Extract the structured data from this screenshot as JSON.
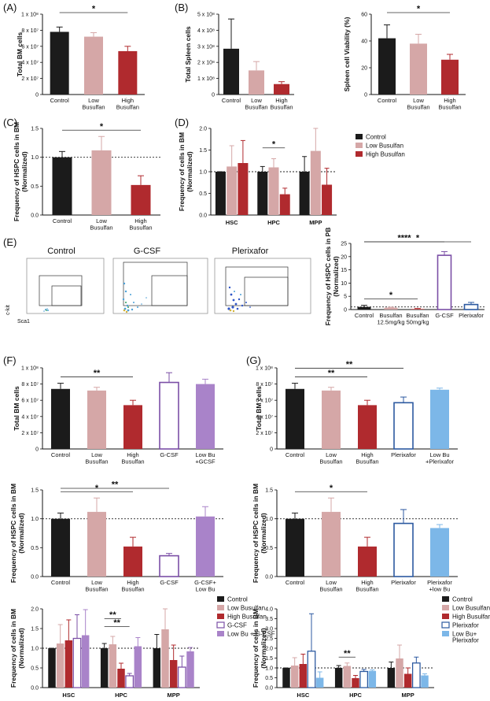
{
  "colors": {
    "control": "#1b1b1b",
    "low": "#d5a7a7",
    "high": "#b02a2e",
    "gcsf": "#7b4fa6",
    "lowbu_gcsf": "#a983c9",
    "plerixafor": "#2c59a0",
    "lowbu_plerixafor": "#7cb7e8"
  },
  "panels": [
    {
      "id": "A",
      "label": "(A)"
    },
    {
      "id": "B",
      "label": "(B)"
    },
    {
      "id": "C",
      "label": "(C)"
    },
    {
      "id": "D",
      "label": "(D)"
    },
    {
      "id": "E",
      "label": "(E)"
    },
    {
      "id": "F",
      "label": "(F)"
    },
    {
      "id": "G",
      "label": "(G)"
    }
  ],
  "flow": {
    "titles": [
      "Control",
      "G-CSF",
      "Plerixafor"
    ],
    "y_axis": "c-kit",
    "x_axis": "Sca1"
  },
  "chart_data": [
    {
      "id": "A",
      "type": "bar",
      "ylabel": "Total BM cells",
      "ylim": [
        0,
        100000000
      ],
      "yticks": [
        "0",
        "2 x 10⁷",
        "4 x 10⁷",
        "6 x 10⁷",
        "8 x 10⁷",
        "1 x 10⁸"
      ],
      "categories": [
        "Control",
        "Low\nBusulfan",
        "High\nBusulfan"
      ],
      "values": [
        78000000,
        72000000,
        54000000
      ],
      "errors": [
        6000000,
        5000000,
        6000000
      ],
      "fills": [
        "control",
        "low",
        "high"
      ],
      "significance": [
        {
          "from": 0,
          "to": 2,
          "label": "*"
        }
      ]
    },
    {
      "id": "B1",
      "type": "bar",
      "ylabel": "Total Spleen cells",
      "ylim": [
        0,
        500000000
      ],
      "yticks": [
        "0",
        "1 x 10⁸",
        "2 x 10⁸",
        "3 x 10⁸",
        "4 x 10⁸",
        "5 x 10⁸"
      ],
      "categories": [
        "Control",
        "Low\nBusulfan",
        "High\nBusulfan"
      ],
      "values": [
        285000000,
        150000000,
        65000000
      ],
      "errors": [
        185000000,
        55000000,
        15000000
      ],
      "fills": [
        "control",
        "low",
        "high"
      ],
      "significance": []
    },
    {
      "id": "B2",
      "type": "bar",
      "ylabel": "Spleen cell Viability (%)",
      "ylim": [
        0,
        60
      ],
      "yticks": [
        "0",
        "20",
        "40",
        "60"
      ],
      "categories": [
        "Control",
        "Low\nBusulfan",
        "High\nBusulfan"
      ],
      "values": [
        42,
        38,
        26
      ],
      "errors": [
        10,
        7,
        4
      ],
      "fills": [
        "control",
        "low",
        "high"
      ],
      "significance": [
        {
          "from": 0,
          "to": 2,
          "label": "*"
        }
      ]
    },
    {
      "id": "C",
      "type": "bar",
      "ylabel": "Frequency of HSPC cells in BM\n(Normalized)",
      "ylim": [
        0,
        1.5
      ],
      "yticks": [
        "0.0",
        "0.5",
        "1.0",
        "1.5"
      ],
      "categories": [
        "Control",
        "Low\nBusulfan",
        "High\nBusulfan"
      ],
      "values": [
        1.0,
        1.12,
        0.52
      ],
      "errors": [
        0.1,
        0.24,
        0.16
      ],
      "fills": [
        "control",
        "low",
        "high"
      ],
      "refline": 1.0,
      "significance": [
        {
          "from": 0,
          "to": 2,
          "label": "*"
        }
      ]
    },
    {
      "id": "D",
      "type": "grouped-bar",
      "ylabel": "Frequency of cells in BM\n(Normalized)",
      "ylim": [
        0,
        2.0
      ],
      "yticks": [
        "0.0",
        "0.5",
        "1.0",
        "1.5",
        "2.0"
      ],
      "categories": [
        "HSC",
        "HPC",
        "MPP"
      ],
      "refline": 1.0,
      "series": [
        {
          "name": "Control",
          "fill": "control",
          "values": [
            1.0,
            1.0,
            1.0
          ],
          "errors": [
            0.0,
            0.12,
            0.35
          ]
        },
        {
          "name": "Low Busulfan",
          "fill": "low",
          "values": [
            1.12,
            1.1,
            1.48
          ],
          "errors": [
            0.48,
            0.2,
            0.68
          ]
        },
        {
          "name": "High Busulfan",
          "fill": "high",
          "values": [
            1.2,
            0.48,
            0.7
          ],
          "errors": [
            0.52,
            0.14,
            0.38
          ]
        }
      ],
      "significance": [
        {
          "group": 1,
          "from": 0,
          "to": 2,
          "label": "*"
        }
      ]
    },
    {
      "id": "E",
      "type": "bar",
      "ylabel": "Frequency of HSPC cells in PB\n(Normalized)",
      "ylim": [
        0,
        25
      ],
      "yticks": [
        "0",
        "5",
        "10",
        "15",
        "20",
        "25"
      ],
      "categories": [
        "Control",
        "Busulfan\n12.5mg/kg",
        "Busulfan\n50mg/kg",
        "G-CSF",
        "Plerixafor"
      ],
      "values": [
        1.0,
        0.7,
        0.2,
        20.5,
        1.9
      ],
      "errors": [
        0.6,
        0.2,
        0.2,
        1.4,
        0.8
      ],
      "fills": [
        "control",
        "low",
        "high",
        "gcsf-open",
        "plerixafor-open"
      ],
      "refline": 1.0,
      "significance": [
        {
          "from": 0,
          "to": 2,
          "label": "*"
        },
        {
          "from": 0,
          "to": 3,
          "label": "****"
        },
        {
          "from": 0,
          "to": 4,
          "label": "*"
        }
      ]
    },
    {
      "id": "F1",
      "type": "bar",
      "ylabel": "Total BM cells",
      "ylim": [
        0,
        100000000
      ],
      "yticks": [
        "0",
        "2 x 10⁷",
        "4 x 10⁷",
        "6 x 10⁷",
        "8 x 10⁷",
        "1 x 10⁸"
      ],
      "categories": [
        "Control",
        "Low\nBusulfan",
        "High\nBusulfan",
        "G-CSF",
        "Low Bu\n+GCSF"
      ],
      "values": [
        74000000,
        72000000,
        54000000,
        82000000,
        80000000
      ],
      "errors": [
        7000000,
        4000000,
        6000000,
        12000000,
        6000000
      ],
      "fills": [
        "control",
        "low",
        "high",
        "gcsf-open",
        "lowbu_gcsf"
      ],
      "significance": [
        {
          "from": 0,
          "to": 2,
          "label": "**"
        }
      ]
    },
    {
      "id": "F2",
      "type": "bar",
      "ylabel": "Frequency of HSPC cells in BM\n(Normalized)",
      "ylim": [
        0,
        1.5
      ],
      "yticks": [
        "0.0",
        "0.5",
        "1.0",
        "1.5"
      ],
      "categories": [
        "Control",
        "Low\nBusulfan",
        "High\nBusulfan",
        "G-CSF",
        "G-CSF+\nLow Bu"
      ],
      "values": [
        1.0,
        1.12,
        0.52,
        0.36,
        1.04
      ],
      "errors": [
        0.1,
        0.24,
        0.16,
        0.04,
        0.17
      ],
      "fills": [
        "control",
        "low",
        "high",
        "gcsf-open",
        "lowbu_gcsf"
      ],
      "refline": 1.0,
      "significance": [
        {
          "from": 0,
          "to": 2,
          "label": "*"
        },
        {
          "from": 0,
          "to": 3,
          "label": "**"
        }
      ]
    },
    {
      "id": "G1",
      "type": "bar",
      "ylabel": "Total BM cells",
      "ylim": [
        0,
        100000000
      ],
      "yticks": [
        "0",
        "2 x 10⁷",
        "4 x 10⁷",
        "6 x 10⁷",
        "8 x 10⁷",
        "1 x 10⁸"
      ],
      "categories": [
        "Control",
        "Low\nBusulfan",
        "High\nBusulfan",
        "Plerixafor",
        "Low Bu\n+Plerixafor"
      ],
      "values": [
        74000000,
        72000000,
        54000000,
        57000000,
        73000000
      ],
      "errors": [
        7000000,
        4000000,
        6000000,
        7000000,
        2000000
      ],
      "fills": [
        "control",
        "low",
        "high",
        "plerixafor-open",
        "lowbu_plerixafor"
      ],
      "significance": [
        {
          "from": 0,
          "to": 2,
          "label": "**"
        },
        {
          "from": 0,
          "to": 3,
          "label": "**"
        }
      ]
    },
    {
      "id": "G2",
      "type": "bar",
      "ylabel": "Frequency of HSPC cells in BM\n(Normalized)",
      "ylim": [
        0,
        1.5
      ],
      "yticks": [
        "0.0",
        "0.5",
        "1.0",
        "1.5"
      ],
      "categories": [
        "Control",
        "Low\nBusulfan",
        "High\nBusulfan",
        "Plerixafor",
        "Plerixafor\n+low Bu"
      ],
      "values": [
        1.0,
        1.12,
        0.52,
        0.92,
        0.84
      ],
      "errors": [
        0.1,
        0.24,
        0.16,
        0.24,
        0.06
      ],
      "fills": [
        "control",
        "low",
        "high",
        "plerixafor-open",
        "lowbu_plerixafor"
      ],
      "refline": 1.0,
      "significance": [
        {
          "from": 0,
          "to": 2,
          "label": "*"
        }
      ]
    },
    {
      "id": "F3",
      "type": "grouped-bar",
      "ylabel": "Frequency of cells in BM\n(Normalized)",
      "ylim": [
        0,
        2.0
      ],
      "yticks": [
        "0.0",
        "0.5",
        "1.0",
        "1.5",
        "2.0"
      ],
      "categories": [
        "HSC",
        "HPC",
        "MPP"
      ],
      "refline": 1.0,
      "series": [
        {
          "name": "Control",
          "fill": "control",
          "values": [
            1.0,
            1.0,
            1.0
          ],
          "errors": [
            0.0,
            0.12,
            0.35
          ]
        },
        {
          "name": "Low Busulfan",
          "fill": "low",
          "values": [
            1.12,
            1.1,
            1.48
          ],
          "errors": [
            0.48,
            0.2,
            0.68
          ]
        },
        {
          "name": "High Busulfan",
          "fill": "high",
          "values": [
            1.2,
            0.48,
            0.7
          ],
          "errors": [
            0.52,
            0.14,
            0.38
          ]
        },
        {
          "name": "G-CSF",
          "fill": "gcsf-open",
          "values": [
            1.25,
            0.3,
            0.52
          ],
          "errors": [
            0.6,
            0.06,
            0.28
          ]
        },
        {
          "name": "Low Bu + G-CSF",
          "fill": "lowbu_gcsf",
          "values": [
            1.33,
            1.05,
            0.92
          ],
          "errors": [
            0.65,
            0.22,
            0.1
          ]
        }
      ],
      "significance": [
        {
          "group": 1,
          "from": 0,
          "to": 3,
          "label": "**"
        },
        {
          "group": 1,
          "from": 0,
          "to": 2,
          "label": "**"
        }
      ]
    },
    {
      "id": "G3",
      "type": "grouped-bar",
      "ylabel": "Frequency of cells in BM\n(Normalized)",
      "ylim": [
        0,
        4.0
      ],
      "yticks": [
        "0.0",
        "0.5",
        "1.0",
        "1.5",
        "2.0",
        "2.5",
        "3.0",
        "3.5",
        "4.0"
      ],
      "categories": [
        "HSC",
        "HPC",
        "MPP"
      ],
      "refline": 1.0,
      "series": [
        {
          "name": "Control",
          "fill": "control",
          "values": [
            1.0,
            1.0,
            1.0
          ],
          "errors": [
            0.0,
            0.12,
            0.3
          ]
        },
        {
          "name": "Low Busulfan",
          "fill": "low",
          "values": [
            1.12,
            1.1,
            1.48
          ],
          "errors": [
            0.4,
            0.15,
            0.68
          ]
        },
        {
          "name": "High Busulfan",
          "fill": "high",
          "values": [
            1.2,
            0.48,
            0.7
          ],
          "errors": [
            0.5,
            0.14,
            0.3
          ]
        },
        {
          "name": "Plerixafor",
          "fill": "plerixafor-open",
          "values": [
            1.85,
            0.82,
            1.25
          ],
          "errors": [
            1.9,
            0.1,
            0.3
          ]
        },
        {
          "name": "Low Bu+\nPlerixafor",
          "fill": "lowbu_plerixafor",
          "values": [
            0.5,
            0.85,
            0.62
          ],
          "errors": [
            0.3,
            0.05,
            0.08
          ]
        }
      ],
      "significance": [
        {
          "group": 1,
          "from": 0,
          "to": 2,
          "label": "**"
        }
      ]
    }
  ]
}
